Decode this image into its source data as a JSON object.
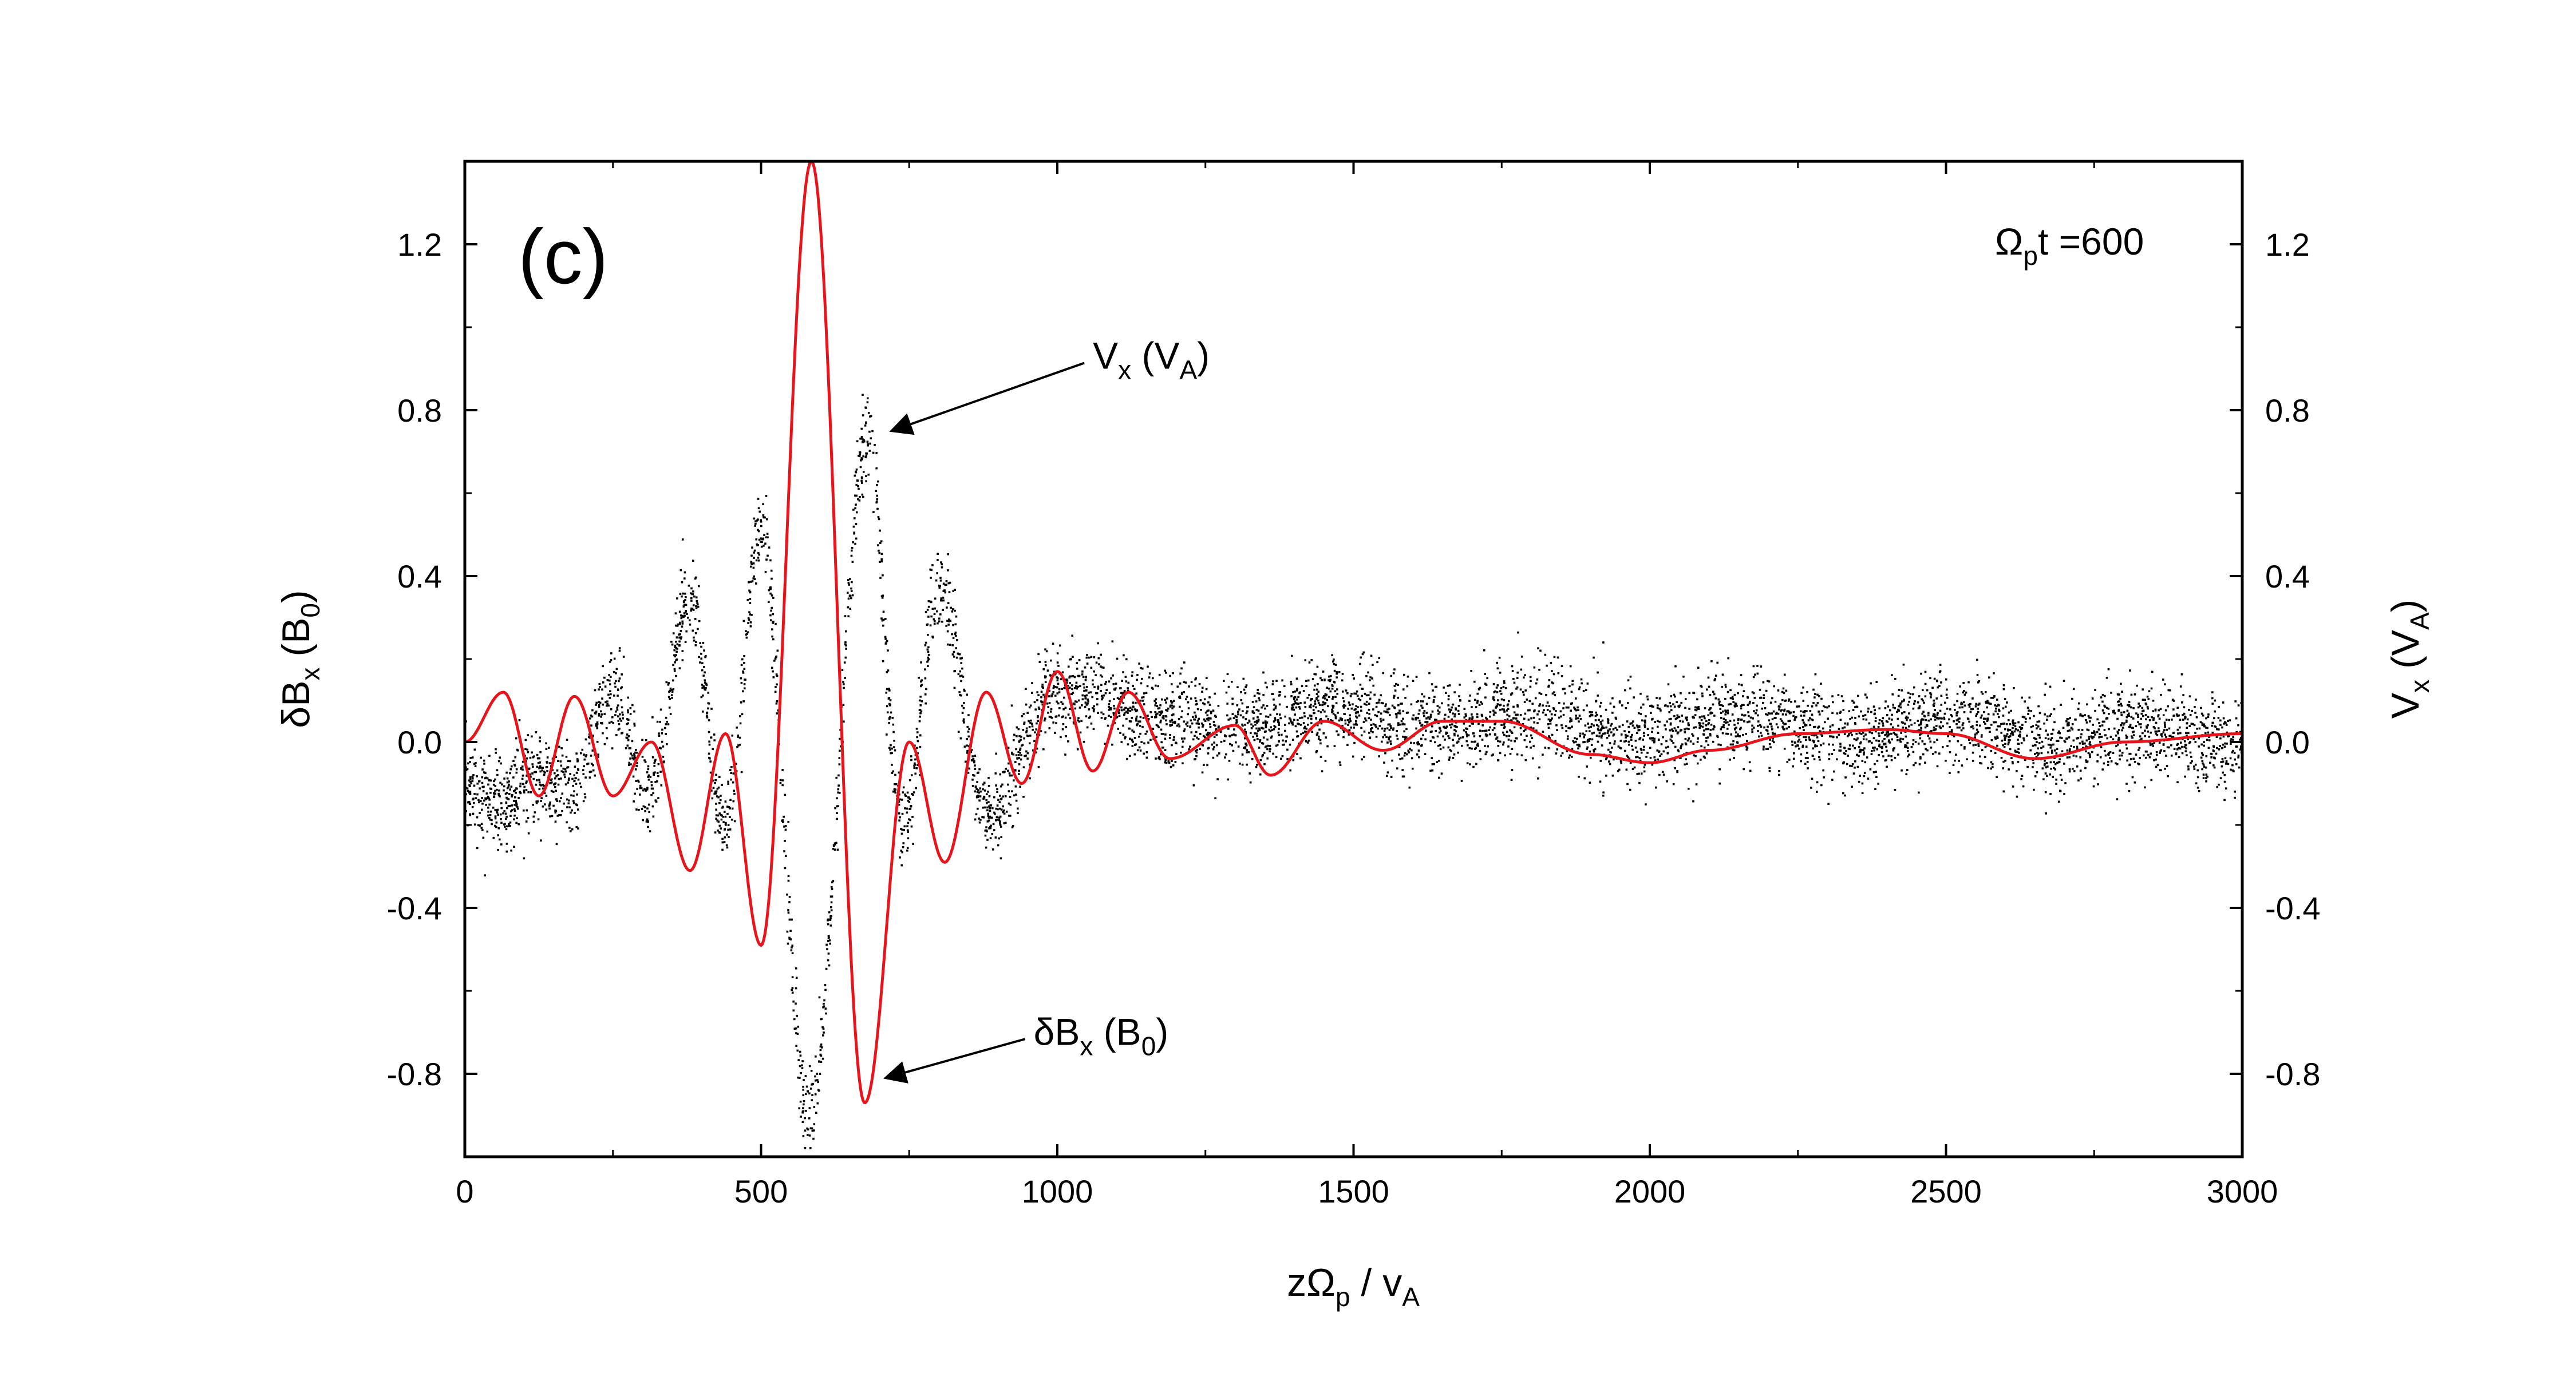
{
  "chart_data": {
    "type": "scatter",
    "panel_label": "(c)",
    "annotation_time": {
      "symbol": "Ω",
      "sub": "p",
      "rest": "t =600"
    },
    "xlabel": {
      "a": "zΩ",
      "a_sub": "p",
      "b": " / v",
      "b_sub": "A"
    },
    "ylabel_left": {
      "a": "δB",
      "a_sub": "x",
      "b": " (B",
      "b_sub": "0",
      "c": ")"
    },
    "ylabel_right": {
      "a": "V",
      "a_sub": "x",
      "b": " (V",
      "b_sub": "A",
      "c": ")"
    },
    "xlim": [
      0,
      3000
    ],
    "ylim": [
      -1.0,
      1.4
    ],
    "xticks": [
      0,
      500,
      1000,
      1500,
      2000,
      2500,
      3000
    ],
    "xtick_labels": [
      "0",
      "500",
      "1000",
      "1500",
      "2000",
      "2500",
      "3000"
    ],
    "yticks": [
      -0.8,
      -0.4,
      0.0,
      0.4,
      0.8,
      1.2
    ],
    "ytick_labels": [
      "-0.8",
      "-0.4",
      "0.0",
      "0.4",
      "0.8",
      "1.2"
    ],
    "colors": {
      "vx_points": "#000000",
      "dbx_line": "#e8141b",
      "axes": "#000000"
    },
    "callouts": [
      {
        "series": "Vx",
        "label": {
          "a": "V",
          "a_sub": "x",
          "b": " (V",
          "b_sub": "A",
          "c": ")"
        },
        "label_at": [
          1060,
          0.9
        ],
        "arrow_to": [
          720,
          0.75
        ]
      },
      {
        "series": "dBx",
        "label": {
          "a": "δB",
          "a_sub": "x",
          "b": " (B",
          "b_sub": "0",
          "c": ")"
        },
        "label_at": [
          960,
          -0.73
        ],
        "arrow_to": [
          710,
          -0.81
        ]
      }
    ],
    "series": [
      {
        "name": "Vx",
        "kind": "scatter",
        "envelope": [
          [
            0,
            -0.1
          ],
          [
            60,
            -0.15
          ],
          [
            120,
            -0.08
          ],
          [
            180,
            -0.12
          ],
          [
            250,
            0.12
          ],
          [
            310,
            -0.12
          ],
          [
            380,
            0.34
          ],
          [
            440,
            -0.2
          ],
          [
            500,
            0.5
          ],
          [
            580,
            -0.9
          ],
          [
            680,
            0.72
          ],
          [
            740,
            -0.22
          ],
          [
            800,
            0.38
          ],
          [
            880,
            -0.18
          ],
          [
            1000,
            0.12
          ],
          [
            1200,
            0.05
          ],
          [
            1500,
            0.06
          ],
          [
            2000,
            0.04
          ],
          [
            2500,
            0.03
          ],
          [
            3000,
            0.0
          ]
        ],
        "noise_sd": 0.055
      },
      {
        "name": "dBx",
        "kind": "line",
        "points": [
          [
            0,
            0.0
          ],
          [
            65,
            0.12
          ],
          [
            125,
            -0.13
          ],
          [
            185,
            0.11
          ],
          [
            250,
            -0.13
          ],
          [
            315,
            0.0
          ],
          [
            380,
            -0.31
          ],
          [
            440,
            0.02
          ],
          [
            500,
            -0.49
          ],
          [
            585,
            1.4
          ],
          [
            675,
            -0.87
          ],
          [
            750,
            0.0
          ],
          [
            810,
            -0.29
          ],
          [
            880,
            0.12
          ],
          [
            940,
            -0.1
          ],
          [
            1000,
            0.17
          ],
          [
            1060,
            -0.07
          ],
          [
            1120,
            0.12
          ],
          [
            1190,
            -0.04
          ],
          [
            1300,
            0.04
          ],
          [
            1360,
            -0.08
          ],
          [
            1450,
            0.05
          ],
          [
            1550,
            -0.02
          ],
          [
            1650,
            0.05
          ],
          [
            1750,
            0.05
          ],
          [
            1900,
            -0.03
          ],
          [
            2000,
            -0.05
          ],
          [
            2100,
            -0.02
          ],
          [
            2250,
            0.02
          ],
          [
            2400,
            0.03
          ],
          [
            2500,
            0.02
          ],
          [
            2650,
            -0.04
          ],
          [
            2800,
            0.0
          ],
          [
            3000,
            0.02
          ]
        ]
      }
    ]
  }
}
